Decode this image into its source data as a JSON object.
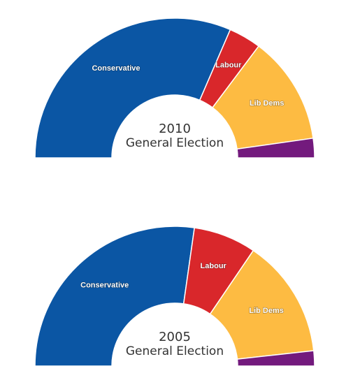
{
  "colors": {
    "Conservative": "#0b56a4",
    "Labour": "#d9272b",
    "Lib Dems": "#fdbb42",
    "Other": "#731a7d"
  },
  "chart_data": [
    {
      "type": "pie",
      "subtype": "half-donut",
      "center_label": [
        "2010",
        "General Election"
      ],
      "slices": [
        {
          "name": "Conservative",
          "value": 63.0,
          "label": "Conservative"
        },
        {
          "name": "Labour",
          "value": 7.5,
          "label": "Labour"
        },
        {
          "name": "Lib Dems",
          "value": 25.0,
          "label": "Lib Dems"
        },
        {
          "name": "Other",
          "value": 4.5,
          "label": ""
        }
      ]
    },
    {
      "type": "pie",
      "subtype": "half-donut",
      "center_label": [
        "2005",
        "General Election"
      ],
      "slices": [
        {
          "name": "Conservative",
          "value": 54.5,
          "label": "Conservative"
        },
        {
          "name": "Labour",
          "value": 14.5,
          "label": "Labour"
        },
        {
          "name": "Lib Dems",
          "value": 27.5,
          "label": "Lib Dems"
        },
        {
          "name": "Other",
          "value": 3.5,
          "label": ""
        }
      ]
    }
  ]
}
